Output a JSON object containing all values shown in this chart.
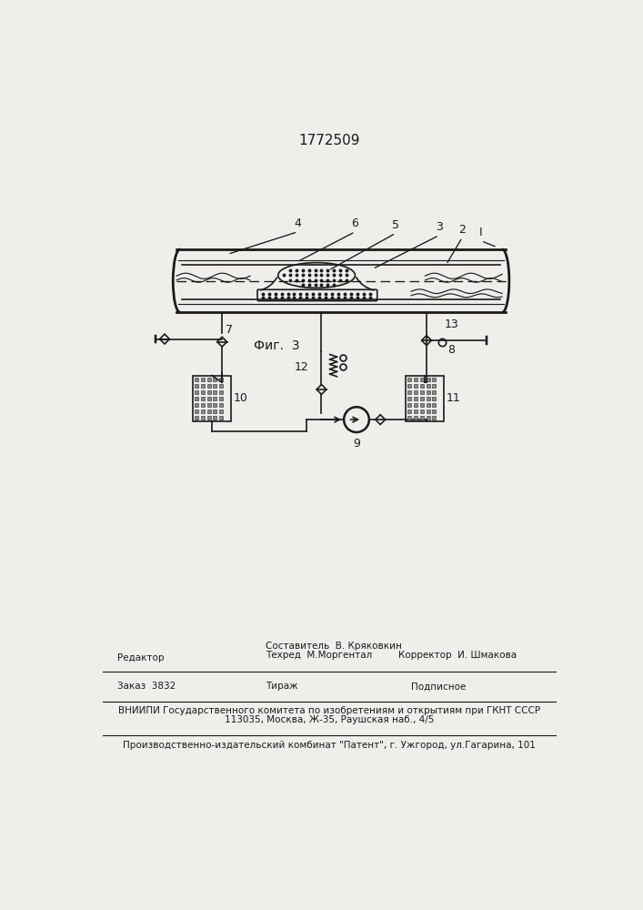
{
  "patent_number": "1772509",
  "fig_label": "Фиг.  3",
  "background_color": "#f0eeeb",
  "line_color": "#1a1a1a",
  "editor_line1": "Составитель  В. Кряковкин",
  "editor_line2": "Техред  М.Моргентал",
  "editor_label": "Редактор",
  "corrector_label": "Корректор  И. Шмакова",
  "order_text": "Заказ  3832",
  "tirazh_text": "Тираж",
  "podpisnoe_text": "Подписное",
  "vnipi_line1": "ВНИИПИ Государственного комитета по изобретениям и открытиям при ГКНТ СССР",
  "vnipi_line2": "113035, Москва, Ж-35, Раушская наб., 4/5",
  "patent_line": "Производственно-издательский комбинат \"Патент\", г. Ужгород, ул.Гагарина, 101"
}
